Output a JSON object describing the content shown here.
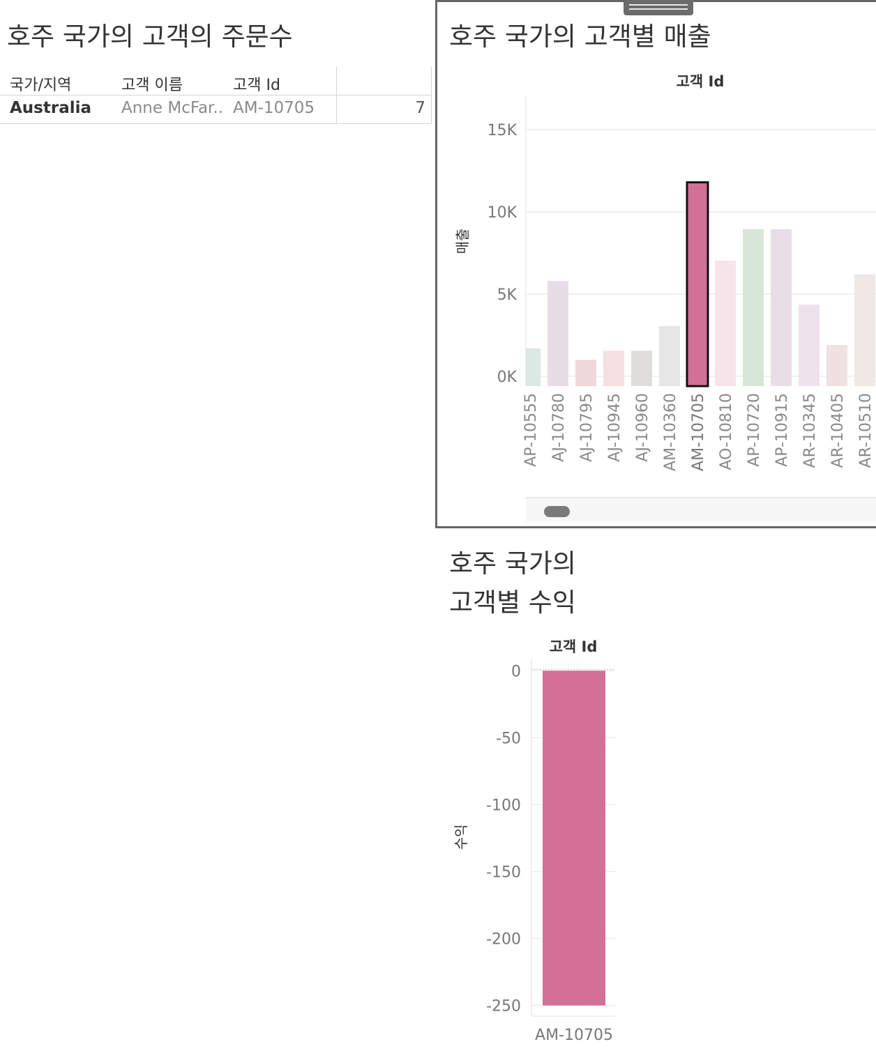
{
  "orders": {
    "title": "호주 국가의 고객의 주문수",
    "headers": [
      "국가/지역",
      "고객 이름",
      "고객 Id"
    ],
    "row": {
      "country": "Australia",
      "customer_name": "Anne McFar..",
      "customer_id": "AM-10705",
      "order_count": "7"
    }
  },
  "sales": {
    "title": "호주 국가의 고객별 매출",
    "column_header": "고객 Id",
    "y_axis_label": "매출",
    "y_ticks": [
      "15K",
      "10K",
      "5K",
      "0K"
    ],
    "partial_first_label": "AP-10555"
  },
  "profit": {
    "title_line1": "호주 국가의",
    "title_line2": "고객별 수익",
    "column_header": "고객 Id",
    "y_axis_label": "수익",
    "y_ticks": [
      "0",
      "-50",
      "-100",
      "-150",
      "-200",
      "-250"
    ],
    "x_label": "AM-10705"
  },
  "colors": {
    "highlight": "#d37095",
    "highlight_border": "#111111",
    "grid": "#ececec"
  },
  "chart_data": [
    {
      "type": "bar",
      "title": "호주 국가의 고객별 매출",
      "xlabel": "고객 Id",
      "ylabel": "매출",
      "ylim": [
        -600,
        17000
      ],
      "grid": true,
      "categories": [
        "AP-10555",
        "AJ-10780",
        "AJ-10795",
        "AJ-10945",
        "AJ-10960",
        "AM-10360",
        "AM-10705",
        "AO-10810",
        "AP-10720",
        "AP-10915",
        "AR-10345",
        "AR-10405",
        "AR-10510"
      ],
      "values": [
        1700,
        5800,
        1000,
        1550,
        1550,
        3050,
        11800,
        7050,
        8950,
        8950,
        4350,
        1900,
        6200
      ],
      "bar_colors": [
        "#dce8e3",
        "#e7dde6",
        "#f0d7da",
        "#f6dfe1",
        "#dfdcdc",
        "#e6e6e6",
        "#d37095",
        "#f6e4ea",
        "#d8e6d8",
        "#e9dee7",
        "#eee2ec",
        "#eee1df",
        "#efe8e4"
      ],
      "selected": "AM-10705"
    },
    {
      "type": "bar",
      "title": "호주 국가의 고객별 수익",
      "xlabel": "고객 Id",
      "ylabel": "수익",
      "ylim": [
        -258,
        9
      ],
      "grid": true,
      "categories": [
        "AM-10705"
      ],
      "values": [
        -250
      ]
    }
  ]
}
